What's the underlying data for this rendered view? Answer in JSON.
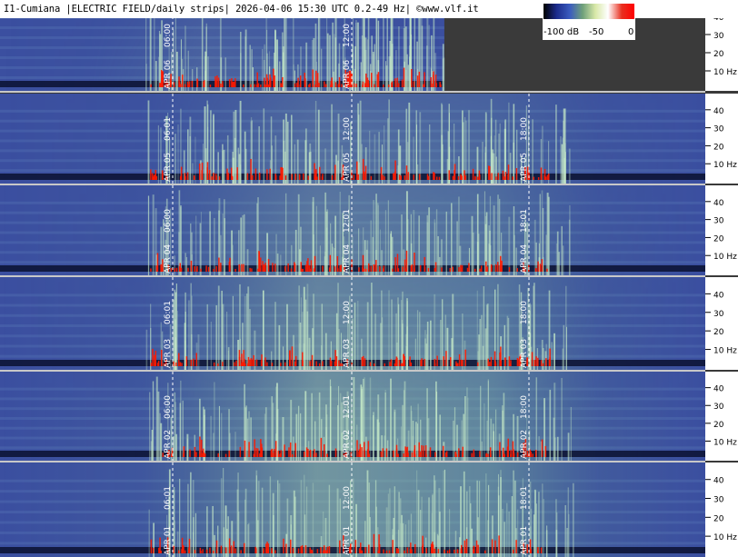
{
  "title": "I1-Cumiana |ELECTRIC FIELD/daily strips| 2026-04-06 15:30 UTC 0.2-49 Hz| ©www.vlf.it",
  "legend": {
    "ticks": [
      "-100 dB",
      "-50",
      "0"
    ],
    "colors": [
      "#000000",
      "#1a2a8a",
      "#3a5bbf",
      "#6fa07a",
      "#d8e8a8",
      "#ffffff",
      "#e83020",
      "#ff0000"
    ]
  },
  "colors": {
    "background": "#3a3a3a",
    "panel_base": "#3b4fa0",
    "activity": "#8ec7a0",
    "burst": "#ff1a00",
    "separator": "#c8c8c8"
  },
  "chart_data": {
    "type": "heatmap",
    "description_units": "frequency Hz vs UTC time",
    "y_ticks": [
      "40",
      "30",
      "20",
      "10 Hz"
    ],
    "ylim": [
      0.2,
      49
    ],
    "strips": [
      {
        "date_label": "APR 06",
        "time_marks": [
          "06:00",
          "12:00"
        ],
        "data_until": 0.63
      },
      {
        "date_label": "APR 05",
        "time_marks": [
          "06:01",
          "12:00",
          "18:00"
        ],
        "data_until": 1.0
      },
      {
        "date_label": "APR 04",
        "time_marks": [
          "06:00",
          "12:01",
          "18:01"
        ],
        "data_until": 1.0
      },
      {
        "date_label": "APR 03",
        "time_marks": [
          "06:01",
          "12:00",
          "18:00"
        ],
        "data_until": 1.0
      },
      {
        "date_label": "APR 02",
        "time_marks": [
          "06:00",
          "12:01",
          "18:00"
        ],
        "data_until": 1.0
      },
      {
        "date_label": "APR 01",
        "time_marks": [
          "06:01",
          "12:00",
          "18:01"
        ],
        "data_until": 1.0
      }
    ]
  }
}
